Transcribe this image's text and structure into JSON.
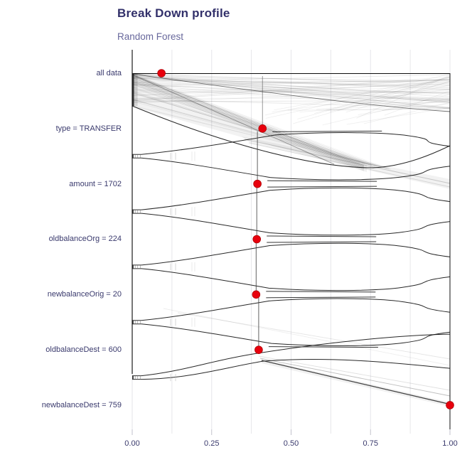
{
  "title": "Break Down profile",
  "subtitle": "Random Forest",
  "chart_data": {
    "type": "line",
    "variant": "break-down-profile-with-distributions",
    "model": "Random Forest",
    "rows": [
      {
        "label": "all data",
        "value": 0.092
      },
      {
        "label": "type = TRANSFER",
        "value": 0.41
      },
      {
        "label": "amount = 1702",
        "value": 0.394
      },
      {
        "label": "oldbalanceOrg = 224",
        "value": 0.392
      },
      {
        "label": "newbalanceOrig = 20",
        "value": 0.39
      },
      {
        "label": "oldbalanceDest = 600",
        "value": 0.398
      },
      {
        "label": "newbalanceDest = 759",
        "value": 1.0
      }
    ],
    "x_axis": {
      "tick_labels": [
        "0.00",
        "0.25",
        "0.50",
        "0.75",
        "1.00"
      ],
      "tick_values": [
        0,
        0.25,
        0.5,
        0.75,
        1.0
      ],
      "range": [
        0,
        1
      ],
      "minor_grid_step": 0.125,
      "grid": true
    },
    "legend_position": "none",
    "colors": {
      "dot": "#e8000d",
      "dot_edge": "#b00008",
      "profile_line": "#000000",
      "grid": "#e6e6ea",
      "tick_mark": "#c2c2cc",
      "title": "#32306a",
      "subtitle": "#68689c",
      "axis_label": "#3a3a6d"
    }
  }
}
